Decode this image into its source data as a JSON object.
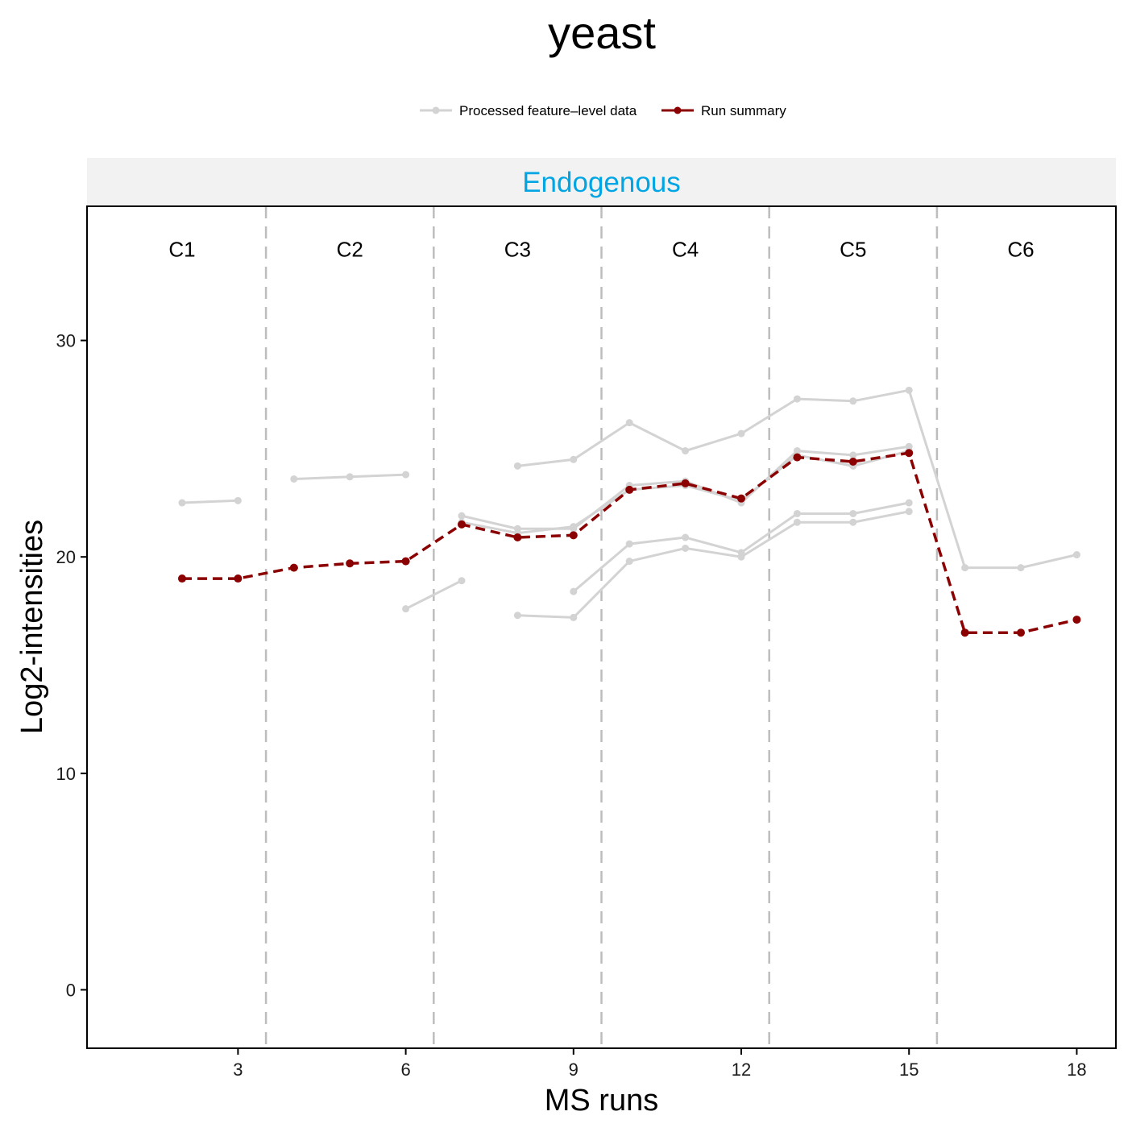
{
  "chart_data": {
    "type": "line",
    "title": "yeast",
    "xlabel": "MS runs",
    "ylabel": "Log2-intensities",
    "facet_label": "Endogenous",
    "xlim": [
      0.3,
      18.7
    ],
    "ylim": [
      -2.7,
      36.2
    ],
    "x_ticks": [
      3,
      6,
      9,
      12,
      15,
      18
    ],
    "y_ticks": [
      0,
      10,
      20,
      30
    ],
    "grid": false,
    "legend_position": "top",
    "legend": [
      {
        "label": "Processed feature–level data",
        "color": "#d3d3d3"
      },
      {
        "label": "Run summary",
        "color": "#8b0000"
      }
    ],
    "conditions": [
      {
        "label": "C1",
        "center": 2
      },
      {
        "label": "C2",
        "center": 5
      },
      {
        "label": "C3",
        "center": 8
      },
      {
        "label": "C4",
        "center": 11
      },
      {
        "label": "C5",
        "center": 14
      },
      {
        "label": "C6",
        "center": 17
      }
    ],
    "condition_boundaries": [
      3.5,
      6.5,
      9.5,
      12.5,
      15.5
    ],
    "condition_label_y": 34.2,
    "features": [
      {
        "segments": [
          [
            [
              2,
              22.5
            ],
            [
              3,
              22.6
            ]
          ],
          [
            [
              4,
              23.6
            ],
            [
              5,
              23.7
            ],
            [
              6,
              23.8
            ]
          ],
          [
            [
              8,
              24.2
            ],
            [
              9,
              24.5
            ],
            [
              10,
              26.2
            ],
            [
              11,
              24.9
            ],
            [
              12,
              25.7
            ],
            [
              13,
              27.3
            ],
            [
              14,
              27.2
            ],
            [
              15,
              27.7
            ],
            [
              16,
              19.5
            ],
            [
              17,
              19.5
            ],
            [
              18,
              20.1
            ]
          ]
        ]
      },
      {
        "segments": [
          [
            [
              6,
              17.6
            ],
            [
              7,
              18.9
            ]
          ]
        ]
      },
      {
        "segments": [
          [
            [
              7,
              21.9
            ],
            [
              8,
              21.3
            ],
            [
              9,
              21.3
            ],
            [
              10,
              23.3
            ],
            [
              11,
              23.5
            ],
            [
              12,
              22.5
            ],
            [
              13,
              24.9
            ],
            [
              14,
              24.7
            ],
            [
              15,
              25.1
            ]
          ]
        ]
      },
      {
        "segments": [
          [
            [
              7,
              21.6
            ],
            [
              8,
              21.1
            ],
            [
              9,
              21.4
            ],
            [
              10,
              23.1
            ],
            [
              11,
              23.3
            ],
            [
              12,
              22.6
            ],
            [
              13,
              24.7
            ],
            [
              14,
              24.2
            ],
            [
              15,
              24.9
            ]
          ]
        ]
      },
      {
        "segments": [
          [
            [
              8,
              17.3
            ],
            [
              9,
              17.2
            ],
            [
              10,
              19.8
            ],
            [
              11,
              20.4
            ],
            [
              12,
              20.0
            ],
            [
              13,
              21.6
            ],
            [
              14,
              21.6
            ],
            [
              15,
              22.1
            ]
          ]
        ]
      },
      {
        "segments": [
          [
            [
              9,
              18.4
            ],
            [
              10,
              20.6
            ],
            [
              11,
              20.9
            ],
            [
              12,
              20.2
            ],
            [
              13,
              22.0
            ],
            [
              14,
              22.0
            ],
            [
              15,
              22.5
            ]
          ]
        ]
      }
    ],
    "run_summary": [
      [
        2,
        19.0
      ],
      [
        3,
        19.0
      ],
      [
        4,
        19.5
      ],
      [
        5,
        19.7
      ],
      [
        6,
        19.8
      ],
      [
        7,
        21.5
      ],
      [
        8,
        20.9
      ],
      [
        9,
        21.0
      ],
      [
        10,
        23.1
      ],
      [
        11,
        23.4
      ],
      [
        12,
        22.7
      ],
      [
        13,
        24.6
      ],
      [
        14,
        24.4
      ],
      [
        15,
        24.8
      ],
      [
        16,
        16.5
      ],
      [
        17,
        16.5
      ],
      [
        18,
        17.1
      ]
    ],
    "colors": {
      "feature": "#d3d3d3",
      "summary": "#8b0000",
      "strip_bg": "#f2f2f2",
      "strip_text": "#00a5e3",
      "boundary": "#bdbdbd"
    }
  }
}
